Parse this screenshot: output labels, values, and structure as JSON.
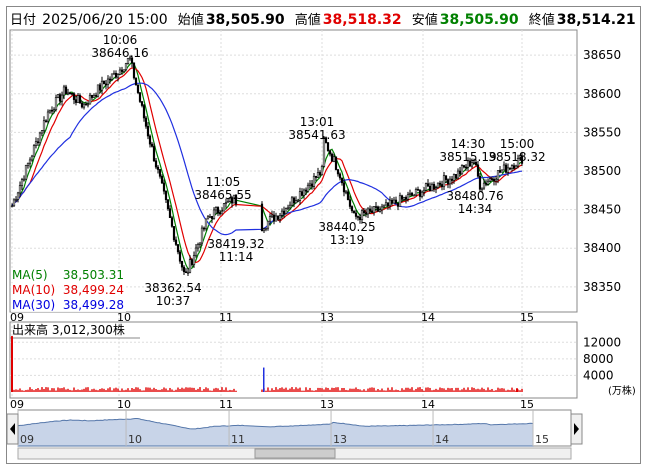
{
  "header": {
    "date_label": "日付",
    "datetime": "2025/06/20 15:00",
    "open_label": "始値",
    "open": "38,505.90",
    "high_label": "高値",
    "high": "38,518.32",
    "low_label": "安値",
    "low": "38,505.90",
    "close_label": "終値",
    "close": "38,514.21"
  },
  "price_axis": [
    "38650",
    "38600",
    "38550",
    "38500",
    "38450",
    "38400",
    "38350"
  ],
  "time_axis": [
    "09",
    "10",
    "11",
    "13",
    "14",
    "15"
  ],
  "annotations": [
    {
      "time": "10:06",
      "value": "38646.16"
    },
    {
      "time": "10:37",
      "value": "38362.54"
    },
    {
      "time": "11:05",
      "value": "38465.55"
    },
    {
      "time": "11:14",
      "value": "38419.32"
    },
    {
      "time": "13:01",
      "value": "38541.63"
    },
    {
      "time": "13:19",
      "value": "38440.25"
    },
    {
      "time": "14:30",
      "value": "38515.19"
    },
    {
      "time": "14:34",
      "value": "38480.76"
    },
    {
      "time": "15:00",
      "value": "38518.32"
    }
  ],
  "ma_legend": [
    {
      "label": "MA(5)",
      "value": "38,503.31",
      "color": "#008000"
    },
    {
      "label": "MA(10)",
      "value": "38,499.24",
      "color": "#e00000"
    },
    {
      "label": "MA(30)",
      "value": "38,499.28",
      "color": "#0000e0"
    }
  ],
  "volume": {
    "label": "出来高",
    "value": "3,012,300株",
    "axis": [
      "12000",
      "8000",
      "4000"
    ],
    "unit": "(万株)"
  },
  "chart_data": {
    "type": "line",
    "title": "",
    "x": [
      "09:00",
      "09:10",
      "09:20",
      "09:30",
      "09:40",
      "09:50",
      "10:00",
      "10:06",
      "10:15",
      "10:25",
      "10:37",
      "10:50",
      "11:05",
      "11:14",
      "11:30",
      "12:30",
      "12:45",
      "13:01",
      "13:10",
      "13:19",
      "13:35",
      "13:50",
      "14:05",
      "14:20",
      "14:30",
      "14:34",
      "14:45",
      "15:00"
    ],
    "series": [
      {
        "name": "",
        "values": [
          38455,
          38515,
          38575,
          38605,
          38585,
          38610,
          38630,
          38646,
          38560,
          38470,
          38362,
          38440,
          38465,
          38419,
          38445,
          38500,
          38505,
          38541,
          38500,
          38440,
          38450,
          38465,
          38480,
          38495,
          38515,
          38481,
          38498,
          38518
        ]
      }
    ],
    "ylim": [
      38320,
      38680
    ],
    "grid": true
  }
}
